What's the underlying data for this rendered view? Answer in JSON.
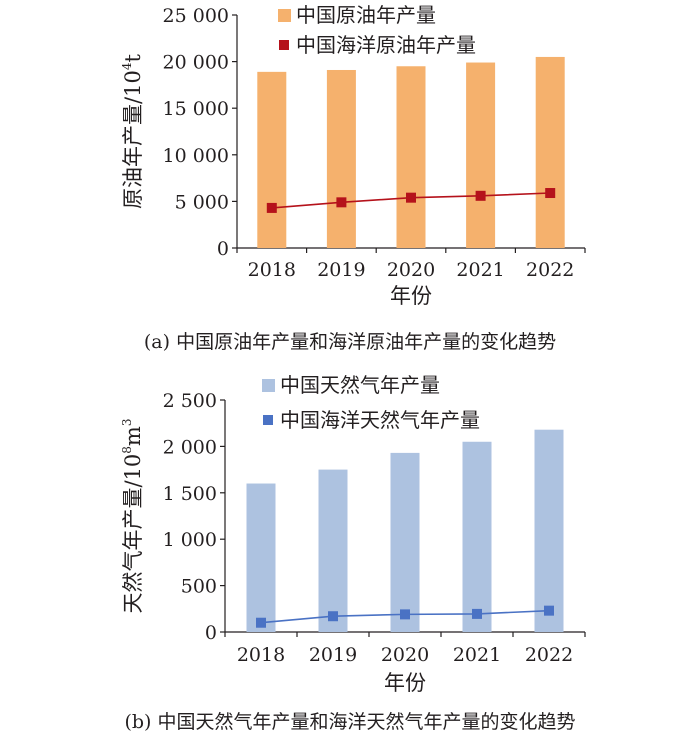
{
  "chart_data": [
    {
      "type": "bar",
      "categories": [
        "2018",
        "2019",
        "2020",
        "2021",
        "2022"
      ],
      "ylim": [
        0,
        25000
      ],
      "yticks": [
        0,
        5000,
        10000,
        15000,
        20000,
        25000
      ],
      "ytick_labels": [
        "0",
        "5 000",
        "10 000",
        "15 000",
        "20 000",
        "25 000"
      ],
      "xlabel": "年份",
      "ylabel": "原油年产量/10",
      "ylabel_sup": "4",
      "ylabel_unit": "t",
      "caption": "(a) 中国原油年产量和海洋原油年产量的变化趋势",
      "legend_position": "top",
      "series": [
        {
          "name": "中国原油年产量",
          "kind": "bar",
          "color": "#f5b16d",
          "values": [
            18900,
            19100,
            19500,
            19900,
            20500
          ]
        },
        {
          "name": "中国海洋原油年产量",
          "kind": "line",
          "color": "#b5121b",
          "values": [
            4300,
            4900,
            5400,
            5600,
            5900
          ]
        }
      ]
    },
    {
      "type": "bar",
      "categories": [
        "2018",
        "2019",
        "2020",
        "2021",
        "2022"
      ],
      "ylim": [
        0,
        2500
      ],
      "yticks": [
        0,
        500,
        1000,
        1500,
        2000,
        2500
      ],
      "ytick_labels": [
        "0",
        "500",
        "1 000",
        "1 500",
        "2 000",
        "2 500"
      ],
      "xlabel": "年份",
      "ylabel": "天然气年产量/10",
      "ylabel_sup": "8",
      "ylabel_unit": "m",
      "ylabel_sup2": "3",
      "caption": "(b) 中国天然气年产量和海洋天然气年产量的变化趋势",
      "legend_position": "top",
      "series": [
        {
          "name": "中国天然气年产量",
          "kind": "bar",
          "color": "#adc2e0",
          "values": [
            1600,
            1750,
            1930,
            2050,
            2180
          ]
        },
        {
          "name": "中国海洋天然气年产量",
          "kind": "line",
          "color": "#4a72c4",
          "values": [
            100,
            170,
            190,
            195,
            230
          ]
        }
      ]
    }
  ]
}
